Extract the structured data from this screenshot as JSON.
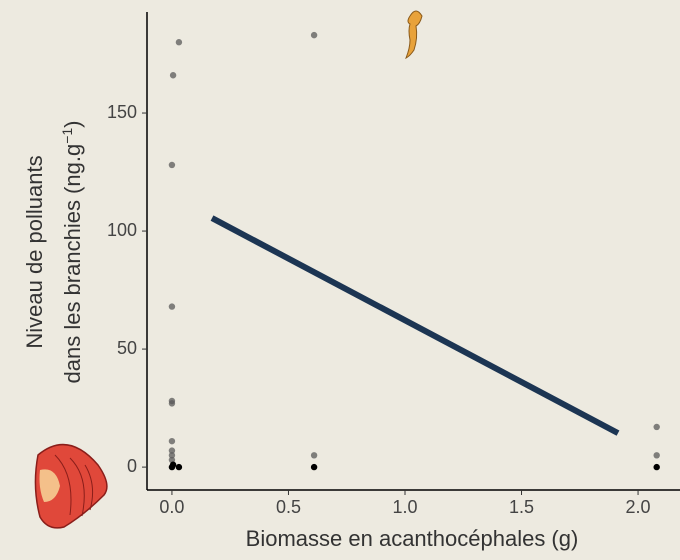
{
  "chart_data": {
    "type": "scatter",
    "xlabel": "Biomasse en acanthocéphales (g)",
    "ylabel": {
      "line1": "Niveau de polluants",
      "line2": "dans les branchies (ng.g",
      "superscript": "−1",
      "line2_end": ")"
    },
    "xlim": [
      -0.107,
      2.18
    ],
    "ylim": [
      -9.7,
      192.8
    ],
    "xticks": [
      {
        "value": 0,
        "label": "0.0"
      },
      {
        "value": 0.5,
        "label": "0.5"
      },
      {
        "value": 1,
        "label": "1.0"
      },
      {
        "value": 1.5,
        "label": "1.5"
      },
      {
        "value": 2,
        "label": "2.0"
      }
    ],
    "yticks": [
      0,
      50,
      100,
      150
    ],
    "series": [
      {
        "color": "#5a5a5a",
        "x": [
          0.03,
          0.005,
          0,
          0,
          0,
          0,
          0,
          0,
          0,
          0,
          0.61,
          0.61,
          2.08,
          2.08
        ],
        "values": [
          180,
          166,
          128,
          68,
          28,
          27,
          11,
          7,
          5,
          3,
          183,
          5,
          17,
          5
        ]
      },
      {
        "color": "#000000",
        "x": [
          0,
          0.005,
          0.03,
          0.61,
          2.08
        ],
        "values": [
          0,
          1,
          0,
          0,
          0
        ]
      }
    ],
    "fit": {
      "color": "#1c3553",
      "x": [
        0.172,
        1.914
      ],
      "values": [
        105.5,
        14.4
      ]
    }
  }
}
